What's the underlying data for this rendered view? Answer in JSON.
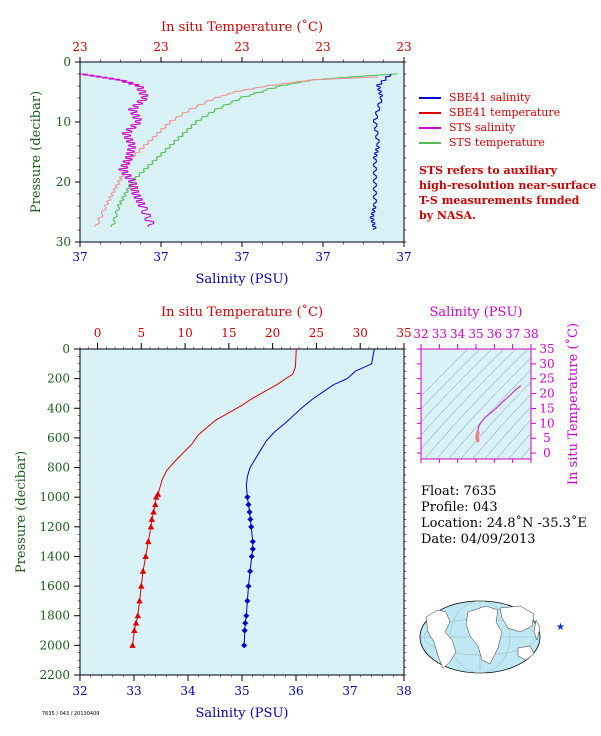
{
  "colors": {
    "plot_bg": "#d9f2f8",
    "red_axis": "#cc0000",
    "blue_axis": "#0000aa",
    "green_axis": "#1a5c1a",
    "magenta": "#cc00cc",
    "sbe_sal": "#0000cc",
    "sbe_temp": "#dd0000",
    "sts_sal": "#cc00cc",
    "sts_temp": "#55bb55",
    "sts_temp_pink": "#f29090"
  },
  "legend": {
    "items": [
      {
        "label": "SBE41 salinity",
        "color": "#0000cc"
      },
      {
        "label": "SBE41 temperature",
        "color": "#dd0000"
      },
      {
        "label": "STS salinity",
        "color": "#cc00cc"
      },
      {
        "label": "STS temperature",
        "color": "#55bb55"
      }
    ],
    "note": [
      "STS refers to auxiliary",
      "high-resolution near-surface",
      "T-S measurements funded",
      "by NASA."
    ]
  },
  "info": {
    "float": "Float:  7635",
    "profile": "Profile:  043",
    "location": "Location:  24.8˚N  -35.3˚E",
    "date": "Date:  04/09/2013"
  },
  "footer_id": "7635 / 043 / 20130409",
  "chart_data": [
    {
      "type": "line",
      "title": "",
      "top_axis_label": "In situ Temperature (˚C)",
      "top_ticks": [
        "23",
        "23",
        "23",
        "23",
        "23"
      ],
      "xlabel": "Salinity (PSU)",
      "x_ticks": [
        "37",
        "37",
        "37",
        "37",
        "37"
      ],
      "ylabel": "Pressure (decibar)",
      "ylim": [
        30,
        0
      ],
      "y_ticks": [
        0,
        10,
        20,
        30
      ],
      "grid": false,
      "series": [
        {
          "name": "STS temperature",
          "x_frac": [
            0.98,
            0.84,
            0.72,
            0.62,
            0.5,
            0.42,
            0.36,
            0.32,
            0.28,
            0.24,
            0.2,
            0.16,
            0.14,
            0.12,
            0.1
          ],
          "pressure": [
            2,
            2.5,
            3,
            4,
            6,
            8,
            10,
            12,
            14,
            16,
            18,
            20,
            22,
            24,
            27.5
          ]
        },
        {
          "name": "STS temperature (pink)",
          "x_frac": [
            0.92,
            0.72,
            0.58,
            0.48,
            0.42,
            0.34,
            0.28,
            0.24,
            0.2,
            0.16,
            0.14,
            0.12,
            0.1,
            0.08,
            0.05
          ],
          "pressure": [
            2.5,
            3,
            4,
            5,
            6,
            8,
            10,
            12,
            14,
            16,
            18,
            20,
            22,
            24,
            27.5
          ]
        },
        {
          "name": "STS salinity",
          "x_frac": [
            0.0,
            0.06,
            0.12,
            0.18,
            0.2,
            0.16,
            0.18,
            0.14,
            0.16,
            0.15,
            0.13,
            0.16,
            0.17,
            0.19,
            0.22
          ],
          "pressure": [
            2,
            2.5,
            3,
            4,
            6,
            8,
            10,
            12,
            14,
            16,
            18,
            20,
            22,
            24,
            27.5
          ]
        },
        {
          "name": "SBE41 salinity",
          "x_frac": [
            0.96,
            0.92,
            0.93,
            0.91,
            0.92,
            0.91,
            0.91,
            0.91,
            0.9,
            0.91
          ],
          "pressure": [
            2,
            4,
            6,
            10,
            14,
            16,
            20,
            24,
            26,
            28
          ]
        }
      ]
    },
    {
      "type": "line",
      "title": "",
      "top_axis_label": "In situ Temperature (˚C)",
      "top_ticks": [
        0,
        5,
        10,
        15,
        20,
        25,
        30,
        35
      ],
      "xlabel": "Salinity (PSU)",
      "x_ticks": [
        32,
        33,
        34,
        35,
        36,
        37,
        38
      ],
      "ylabel": "Pressure (decibar)",
      "ylim": [
        2200,
        0
      ],
      "y_ticks": [
        0,
        200,
        400,
        600,
        800,
        1000,
        1200,
        1400,
        1600,
        1800,
        2000,
        2200
      ],
      "temp_xlim": [
        -2,
        35
      ],
      "sal_xlim": [
        32,
        38
      ],
      "grid": false,
      "series": [
        {
          "name": "SBE41 temperature",
          "axis": "temp",
          "x": [
            22.7,
            22.6,
            22.3,
            21.5,
            20.5,
            19.0,
            17.5,
            16.5,
            15.0,
            13.5,
            12.5,
            11.5,
            10.8,
            9.8,
            8.8,
            7.9,
            7.4,
            7.1,
            6.9,
            6.7,
            6.6,
            6.4,
            6.2,
            6.1,
            5.8,
            5.5,
            5.2,
            5.0,
            4.8,
            4.6,
            4.4,
            4.2,
            4.0
          ],
          "pressure": [
            0,
            120,
            170,
            200,
            240,
            290,
            340,
            380,
            430,
            480,
            530,
            580,
            640,
            700,
            760,
            820,
            880,
            940,
            980,
            1000,
            1050,
            1100,
            1150,
            1200,
            1300,
            1400,
            1500,
            1600,
            1700,
            1800,
            1850,
            1900,
            2000
          ]
        },
        {
          "name": "SBE41 salinity",
          "axis": "sal",
          "x": [
            37.45,
            37.4,
            37.1,
            36.95,
            36.7,
            36.5,
            36.3,
            36.1,
            35.95,
            35.8,
            35.6,
            35.45,
            35.35,
            35.25,
            35.15,
            35.1,
            35.08,
            35.1,
            35.12,
            35.14,
            35.17,
            35.2,
            35.2,
            35.18,
            35.15,
            35.12,
            35.1,
            35.08,
            35.06,
            35.05,
            35.04
          ],
          "pressure": [
            0,
            100,
            150,
            200,
            240,
            290,
            340,
            400,
            450,
            500,
            560,
            620,
            680,
            740,
            800,
            860,
            920,
            1000,
            1050,
            1100,
            1200,
            1300,
            1350,
            1400,
            1500,
            1600,
            1700,
            1800,
            1850,
            1900,
            2000
          ]
        }
      ],
      "markers": {
        "temp_pressure": [
          980,
          1000,
          1050,
          1100,
          1150,
          1200,
          1300,
          1400,
          1500,
          1600,
          1700,
          1800,
          1850,
          1900,
          2000
        ],
        "sal_pressure": [
          1000,
          1050,
          1100,
          1150,
          1200,
          1300,
          1350,
          1400,
          1500,
          1600,
          1700,
          1800,
          1850,
          1900,
          2000
        ]
      }
    },
    {
      "type": "scatter",
      "title": "",
      "top_axis_label": "Salinity (PSU)",
      "top_ticks": [
        32,
        33,
        34,
        35,
        36,
        37,
        38
      ],
      "right_axis_label": "In situ Temperature (˚C)",
      "right_ticks": [
        0,
        5,
        10,
        15,
        20,
        25,
        30,
        35
      ],
      "xlim": [
        32,
        38
      ],
      "ylim": [
        -2,
        35
      ],
      "series": [
        {
          "name": "T-S",
          "x": [
            37.45,
            37.2,
            36.95,
            36.7,
            36.4,
            36.1,
            35.8,
            35.5,
            35.3,
            35.15,
            35.1,
            35.1,
            35.05
          ],
          "y": [
            22.7,
            21.5,
            20.0,
            18.5,
            17.0,
            15.0,
            13.5,
            12.0,
            10.5,
            9.0,
            7.5,
            6.5,
            4.0
          ]
        }
      ]
    }
  ]
}
